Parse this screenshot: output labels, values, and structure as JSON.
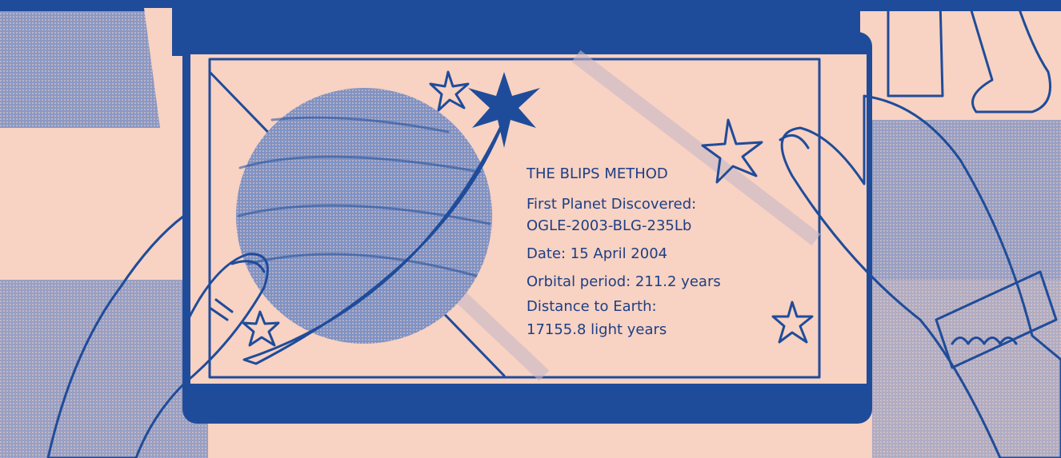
{
  "card": {
    "title": "THE BLIPS METHOD",
    "lines": [
      "First Planet Discovered:",
      "OGLE-2003-BLG-235Lb",
      "Date: 15 April 2004",
      "Orbital period: 211.2 years",
      "Distance to Earth:",
      "17155.8 light years"
    ]
  }
}
